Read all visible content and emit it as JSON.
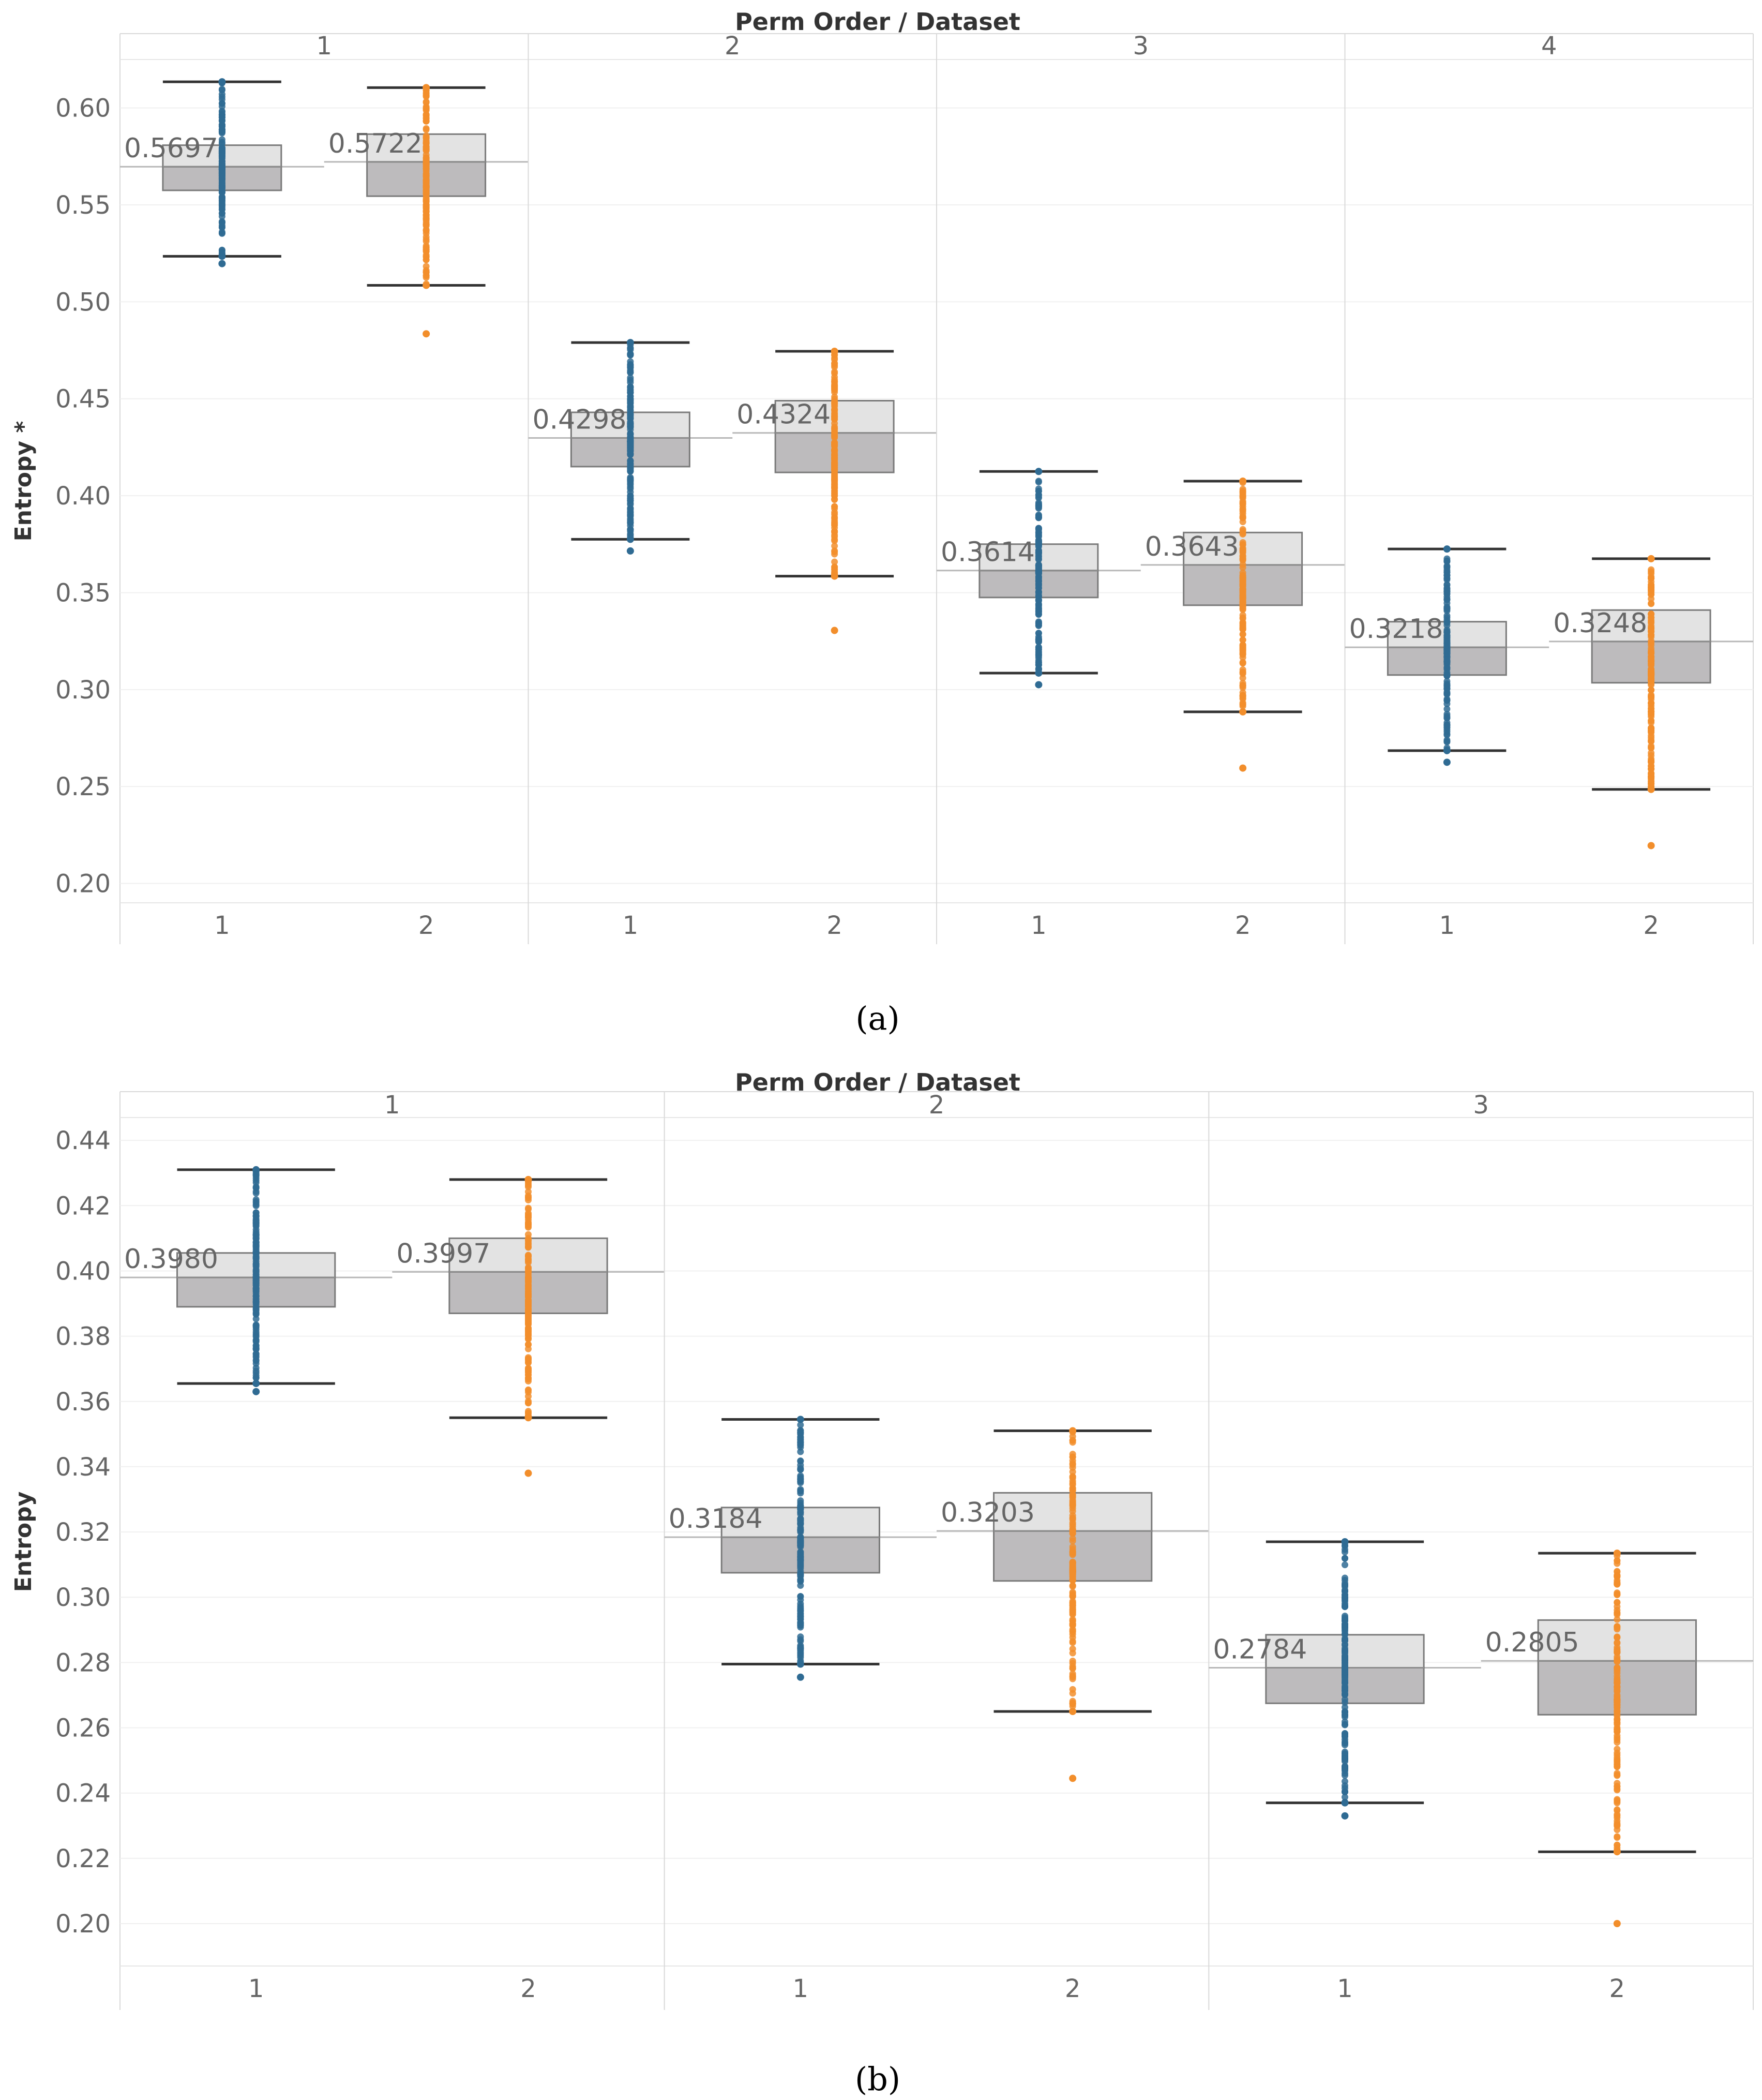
{
  "chart_data": [
    {
      "type": "boxplot",
      "header": "Perm Order / Dataset",
      "ylabel": "Entropy *",
      "caption": "(a)",
      "ylim": [
        0.19,
        0.625
      ],
      "yticks": [
        "0.20",
        "0.25",
        "0.30",
        "0.35",
        "0.40",
        "0.45",
        "0.50",
        "0.55",
        "0.60"
      ],
      "colors": {
        "dataset1": "#2f6b93",
        "dataset2": "#f28e2b"
      },
      "groups": [
        {
          "perm": "1",
          "boxes": [
            {
              "dataset": "1",
              "label": "0.5697",
              "whisker_low": 0.5235,
              "q1": 0.5575,
              "median": 0.5697,
              "q3": 0.5808,
              "whisker_high": 0.6135,
              "outliers": [
                0.5197
              ]
            },
            {
              "dataset": "2",
              "label": "0.5722",
              "whisker_low": 0.5085,
              "q1": 0.5545,
              "median": 0.5722,
              "q3": 0.5865,
              "whisker_high": 0.6105,
              "outliers": [
                0.4835
              ]
            }
          ]
        },
        {
          "perm": "2",
          "boxes": [
            {
              "dataset": "1",
              "label": "0.4298",
              "whisker_low": 0.3775,
              "q1": 0.415,
              "median": 0.4298,
              "q3": 0.443,
              "whisker_high": 0.479,
              "outliers": [
                0.3715
              ]
            },
            {
              "dataset": "2",
              "label": "0.4324",
              "whisker_low": 0.3585,
              "q1": 0.412,
              "median": 0.4324,
              "q3": 0.449,
              "whisker_high": 0.4745,
              "outliers": [
                0.3305
              ]
            }
          ]
        },
        {
          "perm": "3",
          "boxes": [
            {
              "dataset": "1",
              "label": "0.3614",
              "whisker_low": 0.3085,
              "q1": 0.3475,
              "median": 0.3614,
              "q3": 0.375,
              "whisker_high": 0.4125,
              "outliers": [
                0.3025
              ]
            },
            {
              "dataset": "2",
              "label": "0.3643",
              "whisker_low": 0.2885,
              "q1": 0.3435,
              "median": 0.3643,
              "q3": 0.381,
              "whisker_high": 0.4075,
              "outliers": [
                0.2595
              ]
            }
          ]
        },
        {
          "perm": "4",
          "boxes": [
            {
              "dataset": "1",
              "label": "0.3218",
              "whisker_low": 0.2685,
              "q1": 0.3075,
              "median": 0.3218,
              "q3": 0.335,
              "whisker_high": 0.3725,
              "outliers": [
                0.2625
              ]
            },
            {
              "dataset": "2",
              "label": "0.3248",
              "whisker_low": 0.2485,
              "q1": 0.3035,
              "median": 0.3248,
              "q3": 0.341,
              "whisker_high": 0.3675,
              "outliers": [
                0.2195
              ]
            }
          ]
        }
      ]
    },
    {
      "type": "boxplot",
      "header": "Perm Order / Dataset",
      "ylabel": "Entropy",
      "caption": "(b)",
      "ylim": [
        0.187,
        0.447
      ],
      "yticks": [
        "0.20",
        "0.22",
        "0.24",
        "0.26",
        "0.28",
        "0.30",
        "0.32",
        "0.34",
        "0.36",
        "0.38",
        "0.40",
        "0.42",
        "0.44"
      ],
      "colors": {
        "dataset1": "#2f6b93",
        "dataset2": "#f28e2b"
      },
      "groups": [
        {
          "perm": "1",
          "boxes": [
            {
              "dataset": "1",
              "label": "0.3980",
              "whisker_low": 0.3655,
              "q1": 0.389,
              "median": 0.398,
              "q3": 0.4055,
              "whisker_high": 0.431,
              "outliers": [
                0.363
              ]
            },
            {
              "dataset": "2",
              "label": "0.3997",
              "whisker_low": 0.355,
              "q1": 0.387,
              "median": 0.3997,
              "q3": 0.41,
              "whisker_high": 0.428,
              "outliers": [
                0.338
              ]
            }
          ]
        },
        {
          "perm": "2",
          "boxes": [
            {
              "dataset": "1",
              "label": "0.3184",
              "whisker_low": 0.2795,
              "q1": 0.3075,
              "median": 0.3184,
              "q3": 0.3275,
              "whisker_high": 0.3545,
              "outliers": [
                0.2755
              ]
            },
            {
              "dataset": "2",
              "label": "0.3203",
              "whisker_low": 0.265,
              "q1": 0.305,
              "median": 0.3203,
              "q3": 0.332,
              "whisker_high": 0.351,
              "outliers": [
                0.2445
              ]
            }
          ]
        },
        {
          "perm": "3",
          "boxes": [
            {
              "dataset": "1",
              "label": "0.2784",
              "whisker_low": 0.237,
              "q1": 0.2675,
              "median": 0.2784,
              "q3": 0.2885,
              "whisker_high": 0.317,
              "outliers": [
                0.233
              ]
            },
            {
              "dataset": "2",
              "label": "0.2805",
              "whisker_low": 0.222,
              "q1": 0.264,
              "median": 0.2805,
              "q3": 0.293,
              "whisker_high": 0.3135,
              "outliers": [
                0.2
              ]
            }
          ]
        }
      ]
    }
  ]
}
